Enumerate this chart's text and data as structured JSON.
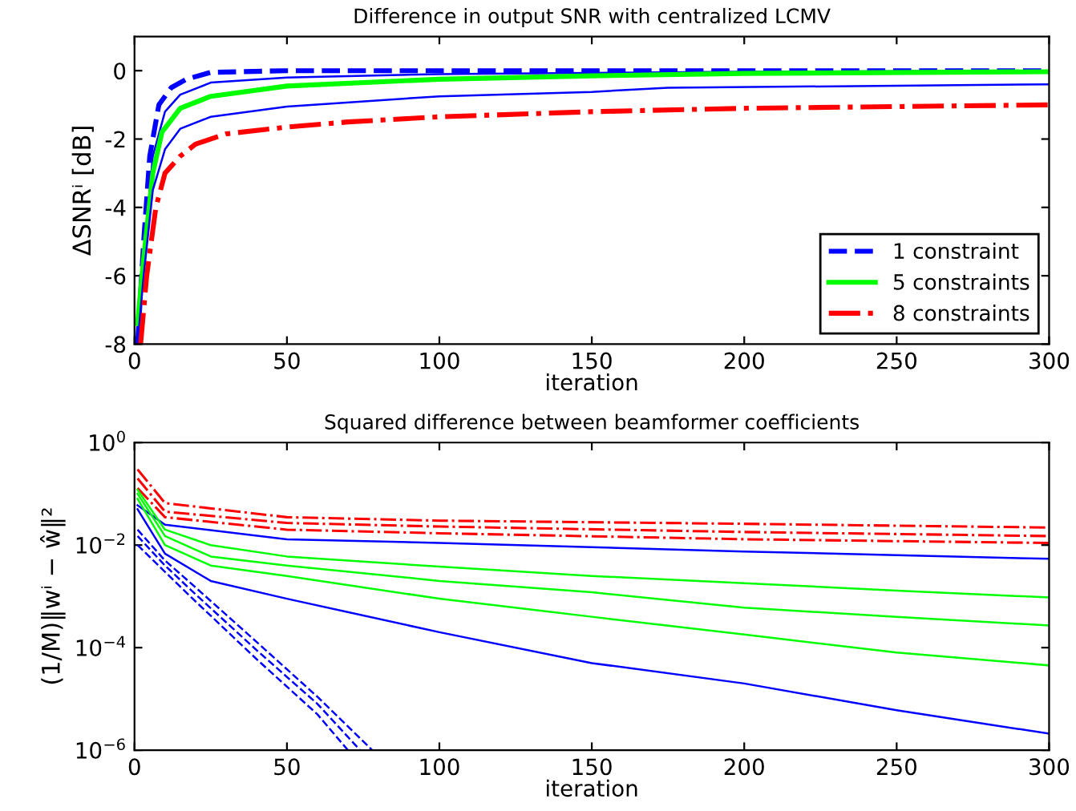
{
  "chart_data": [
    {
      "type": "line",
      "title": "Difference in output SNR with centralized LCMV",
      "xlabel": "iteration",
      "ylabel": "ΔSNRⁱ [dB]",
      "xlim": [
        0,
        300
      ],
      "ylim": [
        -8,
        1
      ],
      "xticks": [
        0,
        50,
        100,
        150,
        200,
        250,
        300
      ],
      "yticks": [
        -8,
        -6,
        -4,
        -2,
        0
      ],
      "grid": false,
      "legend": "bottom right",
      "marker": "none",
      "series": [
        {
          "name": "1 constraint",
          "color": "#0000ff",
          "line_style": "dashed",
          "x": [
            1,
            3,
            5,
            8,
            12,
            17,
            25,
            50,
            300
          ],
          "values": [
            -8,
            -5,
            -2.5,
            -1,
            -0.5,
            -0.25,
            -0.05,
            0,
            0
          ]
        },
        {
          "color": "#0000ff",
          "line_style": "solid",
          "x": [
            1,
            3,
            6,
            10,
            15,
            25,
            50,
            100,
            200,
            300
          ],
          "values": [
            -7.8,
            -5.5,
            -2.5,
            -1.2,
            -0.7,
            -0.35,
            -0.2,
            -0.1,
            -0.03,
            0
          ]
        },
        {
          "name": "5 constraints",
          "color": "#00ff00",
          "line_style": "solid",
          "x": [
            1,
            3,
            6,
            9,
            15,
            25,
            50,
            100,
            150,
            200,
            300
          ],
          "values": [
            -7.4,
            -5.5,
            -3,
            -1.8,
            -1.1,
            -0.75,
            -0.45,
            -0.25,
            -0.15,
            -0.08,
            -0.03
          ]
        },
        {
          "color": "#0000ff",
          "line_style": "solid",
          "x": [
            1,
            3,
            6,
            10,
            15,
            25,
            50,
            100,
            150,
            175,
            300
          ],
          "values": [
            -8,
            -6,
            -3.5,
            -2.3,
            -1.7,
            -1.35,
            -1.05,
            -0.75,
            -0.62,
            -0.5,
            -0.4
          ]
        },
        {
          "name": "8 constraints",
          "color": "#ff0000",
          "line_style": "dashdot",
          "x": [
            2,
            4,
            7,
            10,
            15,
            20,
            30,
            50,
            70,
            100,
            150,
            200,
            250,
            300
          ],
          "values": [
            -8,
            -6,
            -4,
            -3,
            -2.5,
            -2.15,
            -1.85,
            -1.65,
            -1.5,
            -1.35,
            -1.2,
            -1.1,
            -1.05,
            -1.0
          ]
        }
      ]
    },
    {
      "type": "line",
      "title": "Squared difference between beamformer coefficients",
      "xlabel": "iteration",
      "ylabel": "(1/M)‖wⁱ − ŵ‖²",
      "log": "y",
      "xlim": [
        0,
        300
      ],
      "ylim": [
        1e-06,
        1
      ],
      "xticks": [
        0,
        50,
        100,
        150,
        200,
        250,
        300
      ],
      "yticks": [
        {
          "value": 1e-06,
          "label": "10$^{−6}$"
        },
        {
          "value": 0.0001,
          "label": "10$^{−4}$"
        },
        {
          "value": 0.01,
          "label": "10$^{−2}$"
        },
        {
          "value": 1,
          "label": "10$^{0}$"
        }
      ],
      "grid": false,
      "legend": false,
      "marker": "none",
      "series": [
        {
          "color": "#ff0000",
          "line_style": "dashdot",
          "x": [
            1,
            10,
            50,
            100,
            200,
            300
          ],
          "values": [
            0.3,
            0.066,
            0.035,
            0.03,
            0.026,
            0.022
          ]
        },
        {
          "color": "#ff0000",
          "line_style": "dashdot",
          "x": [
            1,
            10,
            50,
            100,
            200,
            300
          ],
          "values": [
            0.2,
            0.045,
            0.027,
            0.023,
            0.018,
            0.015
          ]
        },
        {
          "color": "#ff0000",
          "line_style": "dashdot",
          "x": [
            1,
            10,
            50,
            100,
            200,
            300
          ],
          "values": [
            0.13,
            0.035,
            0.02,
            0.017,
            0.013,
            0.011
          ]
        },
        {
          "color": "#0000ff",
          "line_style": "solid",
          "x": [
            1,
            10,
            50,
            100,
            200,
            300
          ],
          "values": [
            0.06,
            0.025,
            0.013,
            0.011,
            0.0075,
            0.0054
          ]
        },
        {
          "color": "#00ff00",
          "line_style": "solid",
          "x": [
            1,
            10,
            25,
            50,
            100,
            150,
            200,
            250,
            300
          ],
          "values": [
            0.12,
            0.02,
            0.01,
            0.006,
            0.0038,
            0.0025,
            0.0018,
            0.0013,
            0.00095
          ]
        },
        {
          "color": "#00ff00",
          "line_style": "solid",
          "x": [
            1,
            10,
            25,
            50,
            100,
            150,
            200,
            250,
            300
          ],
          "values": [
            0.1,
            0.015,
            0.006,
            0.004,
            0.002,
            0.0012,
            0.0006,
            0.0004,
            0.00027
          ]
        },
        {
          "color": "#00ff00",
          "line_style": "solid",
          "x": [
            1,
            10,
            25,
            50,
            100,
            150,
            200,
            250,
            300
          ],
          "values": [
            0.08,
            0.01,
            0.004,
            0.0025,
            0.0009,
            0.0004,
            0.00018,
            8e-05,
            4.5e-05
          ]
        },
        {
          "color": "#0000ff",
          "line_style": "solid",
          "x": [
            1,
            10,
            25,
            50,
            100,
            150,
            200,
            250,
            300
          ],
          "values": [
            0.05,
            0.0068,
            0.002,
            0.0009,
            0.0002,
            5e-05,
            2e-05,
            6e-06,
            2.1e-06
          ]
        },
        {
          "color": "#0000ff",
          "line_style": "dashed",
          "x": [
            1,
            10,
            20,
            40,
            60,
            78
          ],
          "values": [
            0.02,
            0.005,
            0.0015,
            0.00013,
            1.1e-05,
            1e-06
          ]
        },
        {
          "color": "#0000ff",
          "line_style": "dashed",
          "x": [
            1,
            10,
            20,
            40,
            60,
            74
          ],
          "values": [
            0.015,
            0.004,
            0.0011,
            9e-05,
            8e-06,
            1e-06
          ]
        },
        {
          "color": "#0000ff",
          "line_style": "dashed",
          "x": [
            1,
            10,
            20,
            40,
            60,
            70
          ],
          "values": [
            0.01,
            0.003,
            0.0008,
            6e-05,
            5e-06,
            1e-06
          ]
        }
      ]
    }
  ]
}
